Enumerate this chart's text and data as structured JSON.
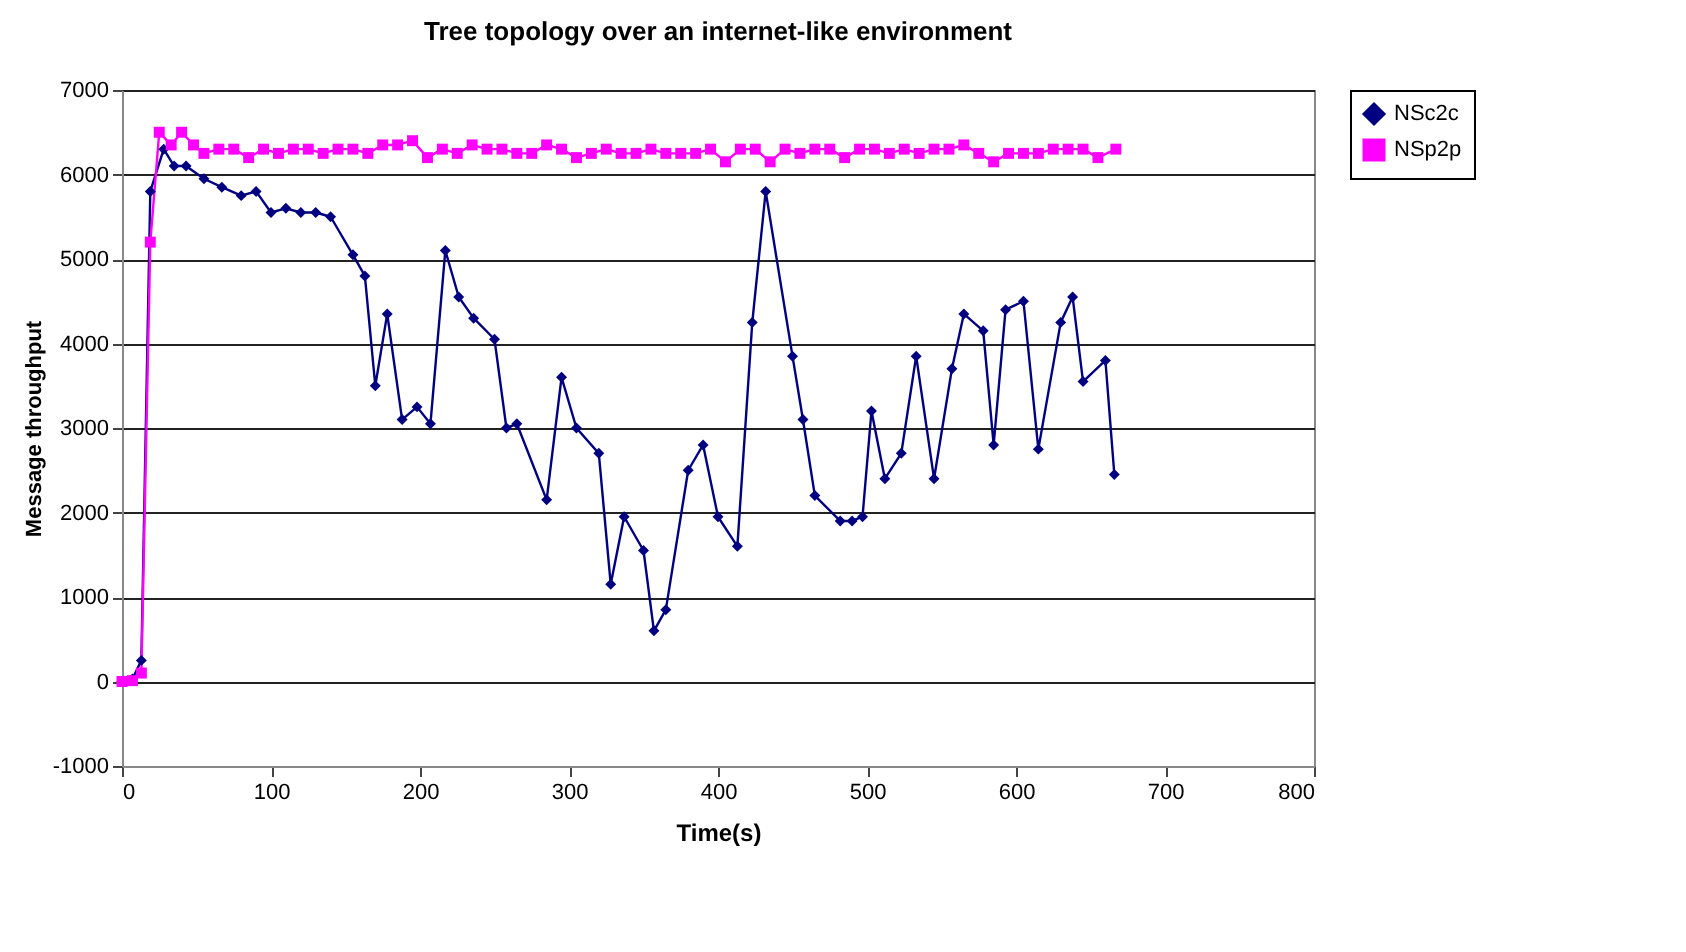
{
  "chart_data": {
    "type": "line",
    "title": "Tree topology over an internet-like environment",
    "xlabel": "Time(s)",
    "ylabel": "Message throughput",
    "xlim": [
      0,
      800
    ],
    "xticks": [
      0,
      100,
      200,
      300,
      400,
      500,
      600,
      700,
      800
    ],
    "ylim": [
      -1000,
      7000
    ],
    "yticks": [
      -1000,
      0,
      1000,
      2000,
      3000,
      4000,
      5000,
      6000,
      7000
    ],
    "grid": "y",
    "legend": "right",
    "series": [
      {
        "name": "NSc2c",
        "color": "#000080",
        "marker": "diamond",
        "x": [
          0,
          7,
          13,
          19,
          28,
          35,
          43,
          55,
          67,
          80,
          90,
          100,
          110,
          120,
          130,
          140,
          155,
          163,
          170,
          178,
          188,
          198,
          207,
          217,
          226,
          236,
          250,
          258,
          265,
          285,
          295,
          305,
          320,
          328,
          337,
          350,
          357,
          365,
          380,
          390,
          400,
          413,
          423,
          432,
          450,
          457,
          465,
          482,
          490,
          497,
          503,
          512,
          523,
          533,
          545,
          557,
          565,
          578,
          585,
          593,
          605,
          615,
          630,
          638,
          645,
          660,
          666
        ],
        "values": [
          0,
          30,
          250,
          5800,
          6300,
          6100,
          6100,
          5950,
          5850,
          5750,
          5800,
          5550,
          5600,
          5550,
          5550,
          5500,
          5050,
          4800,
          3500,
          4350,
          3100,
          3250,
          3050,
          5100,
          4550,
          4300,
          4050,
          3000,
          3050,
          2150,
          3600,
          3000,
          2700,
          1150,
          1950,
          1550,
          600,
          850,
          2500,
          2800,
          1950,
          1600,
          4250,
          5800,
          3850,
          3100,
          2200,
          1900,
          1900,
          1950,
          3200,
          2400,
          2700,
          3850,
          2400,
          3700,
          4350,
          4150,
          2800,
          4400,
          4500,
          2750,
          4250,
          4550,
          3550,
          3800,
          2450
        ]
      },
      {
        "name": "NSp2p",
        "color": "#ff00ff",
        "marker": "square",
        "x": [
          0,
          7,
          13,
          19,
          25,
          33,
          40,
          48,
          55,
          65,
          75,
          85,
          95,
          105,
          115,
          125,
          135,
          145,
          155,
          165,
          175,
          185,
          195,
          205,
          215,
          225,
          235,
          245,
          255,
          265,
          275,
          285,
          295,
          305,
          315,
          325,
          335,
          345,
          355,
          365,
          375,
          385,
          395,
          405,
          415,
          425,
          435,
          445,
          455,
          465,
          475,
          485,
          495,
          505,
          515,
          525,
          535,
          545,
          555,
          565,
          575,
          585,
          595,
          605,
          615,
          625,
          635,
          645,
          655,
          667
        ],
        "values": [
          0,
          10,
          100,
          5200,
          6500,
          6350,
          6500,
          6350,
          6250,
          6300,
          6300,
          6200,
          6300,
          6250,
          6300,
          6300,
          6250,
          6300,
          6300,
          6250,
          6350,
          6350,
          6400,
          6200,
          6300,
          6250,
          6350,
          6300,
          6300,
          6250,
          6250,
          6350,
          6300,
          6200,
          6250,
          6300,
          6250,
          6250,
          6300,
          6250,
          6250,
          6250,
          6300,
          6150,
          6300,
          6300,
          6150,
          6300,
          6250,
          6300,
          6300,
          6200,
          6300,
          6300,
          6250,
          6300,
          6250,
          6300,
          6300,
          6350,
          6250,
          6150,
          6250,
          6250,
          6250,
          6300,
          6300,
          6300,
          6200,
          6300
        ]
      }
    ]
  }
}
